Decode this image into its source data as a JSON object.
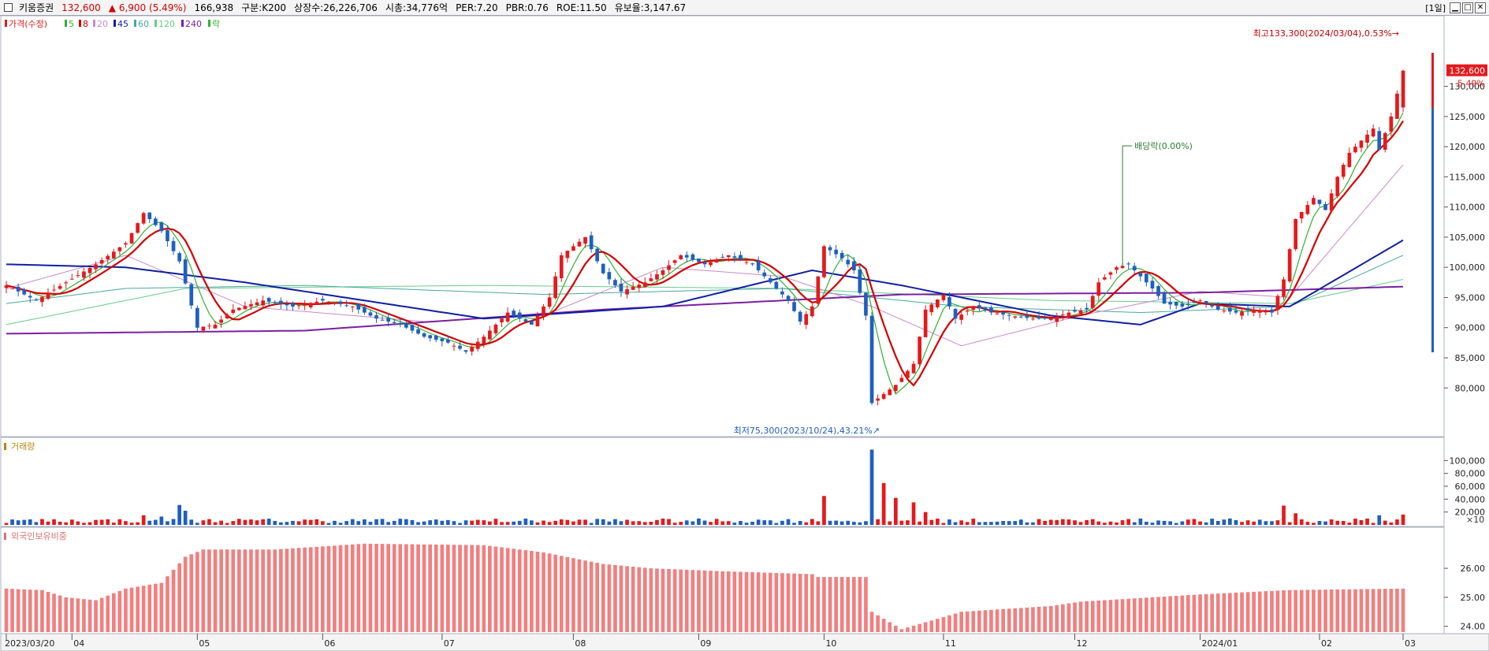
{
  "header": {
    "name": "키움증권",
    "price": "132,600",
    "change": "▲ 6,900 (5.49%)",
    "volume": "166,938",
    "category": "구분:K200",
    "listed": "상장수:26,226,706",
    "marketcap": "시총:34,776억",
    "per": "PER:7.20",
    "pbr": "PBR:0.76",
    "roe": "ROE:11.50",
    "retention": "유보율:3,147.67",
    "period": "[1일]"
  },
  "colors": {
    "up": "#e31a1c",
    "down": "#1f5fbf",
    "ma5": "#33b033",
    "ma8": "#d40000",
    "ma20": "#c88ac8",
    "ma45": "#1020a0",
    "ma60": "#48a8a0",
    "ma120": "#66cc88",
    "ma240": "#7a1fa2",
    "foreign": "#f08080"
  },
  "chart_data": [
    {
      "type": "candlestick",
      "legend": [
        "가격(수정)",
        "5",
        "8",
        "20",
        "45",
        "60",
        "120",
        "240",
        "락"
      ],
      "ylim": [
        73500,
        137000
      ],
      "yticks": [
        80000,
        85000,
        90000,
        95000,
        100000,
        105000,
        110000,
        115000,
        120000,
        125000,
        130000
      ],
      "ytick_labels": [
        "80,000",
        "85,000",
        "90,000",
        "95,000",
        "100,000",
        "105,000",
        "110,000",
        "115,000",
        "120,000",
        "125,000",
        "130,000"
      ],
      "x_labels": [
        "2023/03/20",
        "04",
        "05",
        "06",
        "07",
        "08",
        "09",
        "10",
        "11",
        "12",
        "2024/01",
        "02",
        "03"
      ],
      "last_price_label": "132,600",
      "last_change_label": "5.49%",
      "annotations": {
        "high": "최고133,300(2024/03/04),0.53%→",
        "low": "최저75,300(2023/10/24),43.21%↗",
        "dividend": "배당락(0.00%)"
      },
      "knots": [
        [
          0,
          97000
        ],
        [
          5,
          94500
        ],
        [
          10,
          97500
        ],
        [
          15,
          100500
        ],
        [
          20,
          104000
        ],
        [
          23,
          109000
        ],
        [
          26,
          106000
        ],
        [
          29,
          101000
        ],
        [
          32,
          90000
        ],
        [
          35,
          90500
        ],
        [
          38,
          93000
        ],
        [
          43,
          94500
        ],
        [
          48,
          93500
        ],
        [
          53,
          94500
        ],
        [
          58,
          93500
        ],
        [
          62,
          91500
        ],
        [
          66,
          90500
        ],
        [
          70,
          88500
        ],
        [
          74,
          87500
        ],
        [
          77,
          86000
        ],
        [
          80,
          88500
        ],
        [
          84,
          92500
        ],
        [
          88,
          90500
        ],
        [
          91,
          95000
        ],
        [
          93,
          102000
        ],
        [
          97,
          105000
        ],
        [
          100,
          99000
        ],
        [
          103,
          96000
        ],
        [
          107,
          97500
        ],
        [
          110,
          99500
        ],
        [
          113,
          102000
        ],
        [
          117,
          100500
        ],
        [
          121,
          102000
        ],
        [
          125,
          100500
        ],
        [
          128,
          97500
        ],
        [
          131,
          94500
        ],
        [
          133,
          91000
        ],
        [
          135,
          93500
        ],
        [
          137,
          103500
        ],
        [
          140,
          101500
        ],
        [
          142,
          99500
        ],
        [
          144,
          92000
        ],
        [
          145,
          77500
        ],
        [
          147,
          79000
        ],
        [
          149,
          80500
        ],
        [
          152,
          84000
        ],
        [
          154,
          93000
        ],
        [
          157,
          95500
        ],
        [
          159,
          91500
        ],
        [
          162,
          93500
        ],
        [
          165,
          92500
        ],
        [
          168,
          92000
        ],
        [
          172,
          91500
        ],
        [
          175,
          91500
        ],
        [
          178,
          92500
        ],
        [
          181,
          93000
        ],
        [
          183,
          97500
        ],
        [
          186,
          100000
        ],
        [
          188,
          100500
        ],
        [
          190,
          98500
        ],
        [
          192,
          96500
        ],
        [
          194,
          94000
        ],
        [
          197,
          93500
        ],
        [
          200,
          94500
        ],
        [
          203,
          93000
        ],
        [
          206,
          92500
        ],
        [
          209,
          93000
        ],
        [
          212,
          92500
        ],
        [
          214,
          98000
        ],
        [
          216,
          108000
        ],
        [
          219,
          111500
        ],
        [
          221,
          109500
        ],
        [
          223,
          115000
        ],
        [
          225,
          119000
        ],
        [
          227,
          121000
        ],
        [
          229,
          123000
        ],
        [
          230,
          119500
        ],
        [
          232,
          125000
        ],
        [
          234,
          132600
        ]
      ],
      "ma_anchors": {
        "ma20": [
          [
            0,
            96500
          ],
          [
            20,
            102000
          ],
          [
            40,
            93500
          ],
          [
            70,
            91000
          ],
          [
            90,
            92000
          ],
          [
            110,
            100000
          ],
          [
            130,
            98500
          ],
          [
            145,
            93500
          ],
          [
            160,
            87000
          ],
          [
            180,
            92000
          ],
          [
            200,
            96000
          ],
          [
            215,
            95000
          ],
          [
            234,
            117000
          ]
        ],
        "ma45": [
          [
            0,
            100500
          ],
          [
            20,
            100000
          ],
          [
            40,
            97500
          ],
          [
            80,
            91500
          ],
          [
            110,
            93500
          ],
          [
            135,
            99500
          ],
          [
            150,
            97000
          ],
          [
            175,
            92000
          ],
          [
            190,
            90500
          ],
          [
            200,
            94000
          ],
          [
            215,
            93500
          ],
          [
            234,
            104500
          ]
        ],
        "ma60": [
          [
            0,
            94000
          ],
          [
            20,
            96500
          ],
          [
            50,
            97000
          ],
          [
            90,
            95500
          ],
          [
            130,
            96500
          ],
          [
            160,
            93500
          ],
          [
            190,
            92500
          ],
          [
            215,
            93500
          ],
          [
            234,
            102000
          ]
        ],
        "ma120": [
          [
            0,
            90500
          ],
          [
            30,
            96500
          ],
          [
            80,
            97000
          ],
          [
            130,
            96500
          ],
          [
            175,
            94500
          ],
          [
            215,
            94000
          ],
          [
            234,
            98000
          ]
        ],
        "ma240": [
          [
            0,
            89000
          ],
          [
            50,
            89500
          ],
          [
            100,
            93000
          ],
          [
            150,
            95500
          ],
          [
            200,
            95800
          ],
          [
            234,
            96800
          ]
        ]
      }
    },
    {
      "type": "bar",
      "title": "거래량",
      "ylim": [
        0,
        120000
      ],
      "yticks": [
        20000,
        40000,
        60000,
        80000,
        100000
      ],
      "ytick_labels": [
        "20,000",
        "40,000",
        "60,000",
        "80,000",
        "100,000"
      ],
      "unit_label": "×10",
      "spikes": [
        [
          23,
          15000
        ],
        [
          26,
          13000
        ],
        [
          29,
          31000
        ],
        [
          30,
          22000
        ],
        [
          137,
          45000
        ],
        [
          145,
          117000
        ],
        [
          147,
          65000
        ],
        [
          149,
          42000
        ],
        [
          152,
          35000
        ],
        [
          154,
          20000
        ],
        [
          214,
          30000
        ],
        [
          216,
          18000
        ],
        [
          230,
          15000
        ],
        [
          234,
          16000
        ]
      ]
    },
    {
      "type": "bar",
      "title": "외국인보유비중",
      "ylim": [
        23.8,
        26.9
      ],
      "yticks": [
        24.0,
        25.0,
        26.0
      ],
      "ytick_labels": [
        "24.00",
        "25.00",
        "26.00"
      ],
      "knots": [
        [
          0,
          25.3
        ],
        [
          6,
          25.25
        ],
        [
          10,
          25.0
        ],
        [
          15,
          24.9
        ],
        [
          20,
          25.3
        ],
        [
          26,
          25.5
        ],
        [
          30,
          26.4
        ],
        [
          33,
          26.65
        ],
        [
          45,
          26.65
        ],
        [
          60,
          26.85
        ],
        [
          80,
          26.8
        ],
        [
          90,
          26.55
        ],
        [
          100,
          26.15
        ],
        [
          108,
          26.0
        ],
        [
          120,
          25.9
        ],
        [
          135,
          25.8
        ],
        [
          136,
          25.7
        ],
        [
          144,
          25.7
        ],
        [
          145,
          24.5
        ],
        [
          150,
          23.9
        ],
        [
          155,
          24.2
        ],
        [
          160,
          24.5
        ],
        [
          175,
          24.7
        ],
        [
          180,
          24.85
        ],
        [
          200,
          25.1
        ],
        [
          215,
          25.25
        ],
        [
          234,
          25.3
        ]
      ]
    }
  ]
}
